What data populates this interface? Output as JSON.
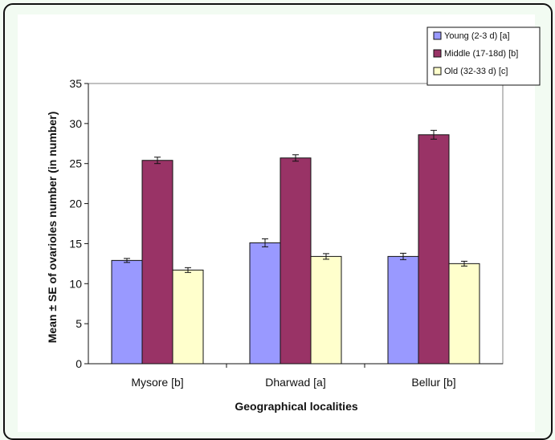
{
  "chart_data": {
    "type": "bar",
    "title": "",
    "xlabel": "Geographical localities",
    "ylabel": "Mean ± SE of ovarioles number (in number)",
    "ylim": [
      0,
      35
    ],
    "yticks": [
      0,
      5,
      10,
      15,
      20,
      25,
      30,
      35
    ],
    "grid": false,
    "legend_position": "top-right",
    "categories": [
      "Mysore [b]",
      "Dharwad [a]",
      "Bellur [b]"
    ],
    "series": [
      {
        "name": "Young (2-3 d)  [a]",
        "color": "#9999ff",
        "values": [
          12.9,
          15.1,
          13.4
        ],
        "errors": [
          0.25,
          0.5,
          0.4
        ]
      },
      {
        "name": "Middle (17-18d) [b]",
        "color": "#993366",
        "values": [
          25.4,
          25.7,
          28.6
        ],
        "errors": [
          0.4,
          0.4,
          0.55
        ]
      },
      {
        "name": "Old (32-33 d) [c]",
        "color": "#ffffcc",
        "values": [
          11.7,
          13.4,
          12.5
        ],
        "errors": [
          0.3,
          0.35,
          0.3
        ]
      }
    ]
  }
}
